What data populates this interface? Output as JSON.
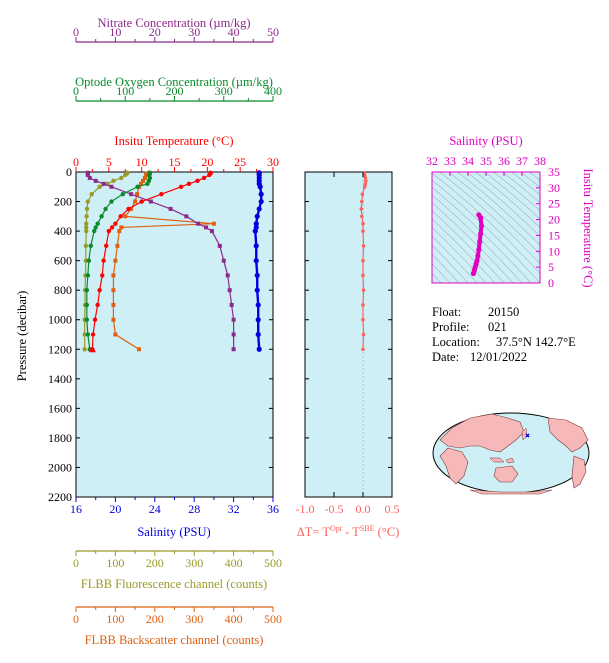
{
  "colors": {
    "nitrate": "#8B2A8B",
    "oxygen": "#0A8A2A",
    "temperature": "#FF0000",
    "salinity": "#0000E0",
    "fluorescence": "#9A9A2A",
    "backscatter": "#E06010",
    "delta": "#FF6060",
    "tsframe": "#E000C0",
    "panel_bg": "#CFEFF7"
  },
  "info": {
    "float_label": "Float:",
    "float_value": "20150",
    "profile_label": "Profile:",
    "profile_value": "021",
    "location_label": "Location:",
    "location_value": "37.5°N  142.7°E",
    "date_label": "Date:",
    "date_value": "12/01/2022"
  },
  "chart_data": [
    {
      "type": "line",
      "panel": "main",
      "ylabel": "Pressure (decibar)",
      "ylim": [
        2200,
        0
      ],
      "yticks": [
        "0",
        "200",
        "400",
        "600",
        "800",
        "1000",
        "1200",
        "1400",
        "1600",
        "1800",
        "2000",
        "2200"
      ],
      "pressure": [
        5,
        10,
        20,
        40,
        60,
        80,
        100,
        150,
        200,
        250,
        300,
        350,
        375,
        400,
        500,
        600,
        700,
        800,
        900,
        1000,
        1100,
        1200
      ],
      "axes": [
        {
          "key": "nitrate",
          "label": "Nitrate Concentration (µm/kg)",
          "min": 0,
          "max": 50,
          "ticks": [
            "0",
            "10",
            "20",
            "30",
            "40",
            "50"
          ]
        },
        {
          "key": "oxygen",
          "label": "Optode Oxygen Concentration (µm/kg)",
          "min": 0,
          "max": 400,
          "ticks": [
            "0",
            "100",
            "200",
            "300",
            "400"
          ]
        },
        {
          "key": "temperature",
          "label": "Insitu Temperature (°C)",
          "min": 0,
          "max": 30,
          "ticks": [
            "0",
            "5",
            "10",
            "15",
            "20",
            "25",
            "30"
          ]
        },
        {
          "key": "salinity",
          "label": "Salinity (PSU)",
          "min": 16,
          "max": 36,
          "ticks": [
            "16",
            "20",
            "24",
            "28",
            "32",
            "36"
          ]
        },
        {
          "key": "fluorescence",
          "label": "FLBB Fluorescence channel (counts)",
          "min": 0,
          "max": 500,
          "ticks": [
            "0",
            "100",
            "200",
            "300",
            "400",
            "500"
          ]
        },
        {
          "key": "backscatter",
          "label": "FLBB Backscatter channel (counts)",
          "min": 0,
          "max": 500,
          "ticks": [
            "0",
            "100",
            "200",
            "300",
            "400",
            "500"
          ]
        }
      ],
      "series": [
        {
          "key": "nitrate",
          "values": [
            3,
            3,
            3,
            3.5,
            5,
            7,
            9,
            14,
            19,
            24,
            28,
            31,
            33,
            34.5,
            36.5,
            37.5,
            38.5,
            39,
            39.5,
            40,
            40,
            40
          ]
        },
        {
          "key": "oxygen",
          "values": [
            150,
            150,
            149,
            150,
            148,
            145,
            125,
            95,
            72,
            60,
            52,
            44,
            40,
            37,
            30,
            26,
            24,
            22,
            22,
            22,
            24,
            28
          ]
        },
        {
          "key": "temperature",
          "values": [
            20.5,
            20.5,
            20.3,
            19.5,
            18.5,
            17.2,
            16,
            13,
            10,
            8,
            6.8,
            6,
            5.5,
            5,
            4.6,
            4.2,
            4,
            3.6,
            3.3,
            2.9,
            2.6,
            2.5
          ]
        },
        {
          "key": "salinity",
          "values": [
            34.6,
            34.6,
            34.6,
            34.6,
            34.6,
            34.6,
            34.7,
            34.8,
            34.8,
            34.6,
            34.4,
            34.3,
            34.3,
            34.2,
            34.3,
            34.3,
            34.4,
            34.4,
            34.5,
            34.5,
            34.5,
            34.6
          ]
        },
        {
          "key": "fluorescence",
          "values": [
            130,
            130,
            125,
            115,
            95,
            80,
            60,
            40,
            30,
            28,
            27,
            26,
            26,
            26,
            25,
            25,
            24,
            23,
            23,
            22,
            22,
            22
          ]
        },
        {
          "key": "backscatter",
          "values": [
            185,
            180,
            178,
            175,
            170,
            165,
            160,
            155,
            150,
            140,
            125,
            350,
            115,
            110,
            105,
            100,
            95,
            95,
            95,
            95,
            100,
            160
          ]
        }
      ]
    },
    {
      "type": "scatter",
      "panel": "delta",
      "xlabel": "ΔT= T^Opt - T^SBE (°C)",
      "xlim": [
        -1.0,
        0.5
      ],
      "xticks": [
        "-1.0",
        "-0.5",
        "0.0",
        "0.5"
      ],
      "pressure": [
        5,
        20,
        40,
        60,
        80,
        100,
        150,
        200,
        250,
        300,
        350,
        400,
        500,
        600,
        700,
        800,
        900,
        1000,
        1100,
        1200
      ],
      "values": [
        0.02,
        0.03,
        0.04,
        0.05,
        0.04,
        0.03,
        -0.01,
        -0.02,
        -0.03,
        -0.02,
        0.0,
        0.0,
        0.01,
        0.0,
        0.0,
        0.01,
        0.0,
        0.0,
        0.01,
        0.0
      ]
    },
    {
      "type": "scatter",
      "panel": "ts",
      "xlabel": "Salinity (PSU)",
      "ylabel": "Insitu Temperature (°C)",
      "xlim": [
        32,
        38
      ],
      "ylim": [
        0,
        35
      ],
      "xticks": [
        "32",
        "33",
        "34",
        "35",
        "36",
        "37",
        "38"
      ],
      "yticks": [
        "0",
        "5",
        "10",
        "15",
        "20",
        "25",
        "30",
        "35"
      ],
      "x": [
        34.6,
        34.7,
        34.75,
        34.7,
        34.65,
        34.6,
        34.55,
        34.5,
        34.45,
        34.4,
        34.35,
        34.3
      ],
      "y": [
        21.5,
        20.5,
        18,
        15.5,
        13,
        10.5,
        8.5,
        7,
        6,
        5,
        4,
        3
      ]
    }
  ]
}
